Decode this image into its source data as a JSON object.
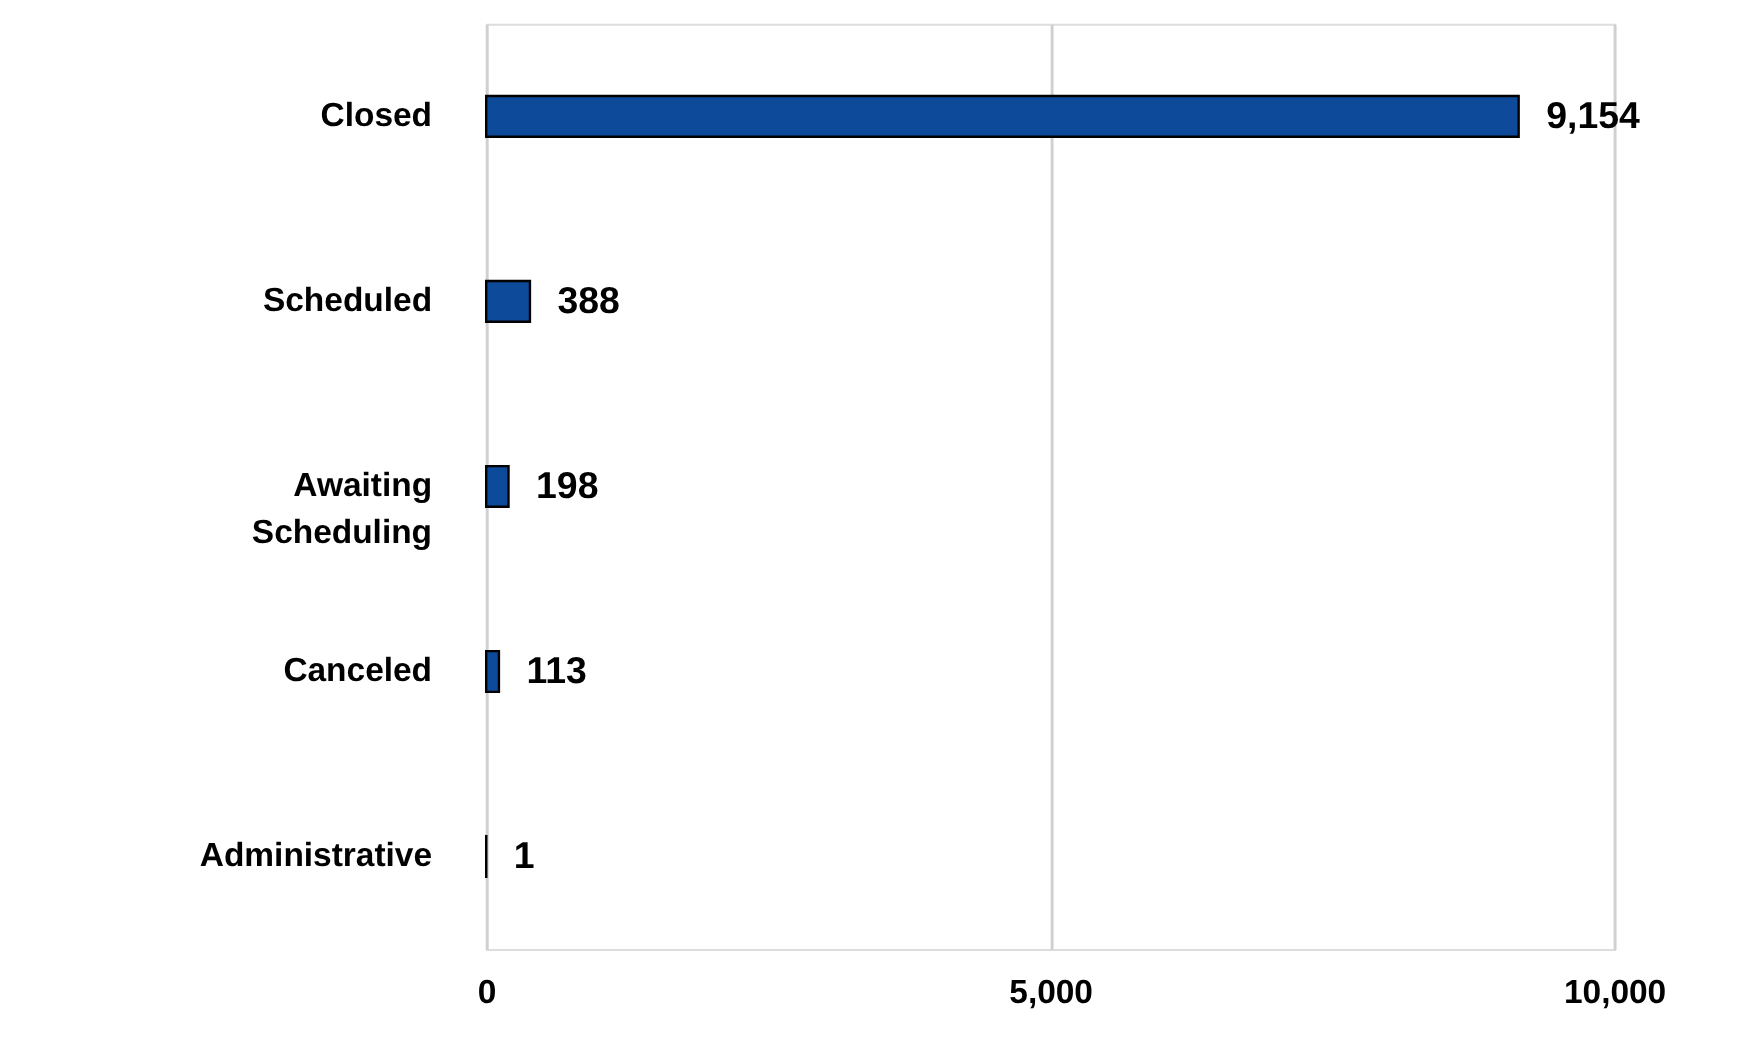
{
  "chart_data": {
    "type": "bar",
    "orientation": "horizontal",
    "categories": [
      "Closed",
      "Scheduled",
      "Awaiting Scheduling",
      "Canceled",
      "Administrative"
    ],
    "values": [
      9154,
      388,
      198,
      113,
      1
    ],
    "value_labels": [
      "9,154",
      "388",
      "198",
      "113",
      "1"
    ],
    "color": "#0d4a9a",
    "xlim": [
      0,
      10000
    ],
    "xticks": [
      {
        "value": 0,
        "label": "0"
      },
      {
        "value": 5000,
        "label": "5,000"
      },
      {
        "value": 10000,
        "label": "10,000"
      }
    ],
    "grid": "x"
  }
}
